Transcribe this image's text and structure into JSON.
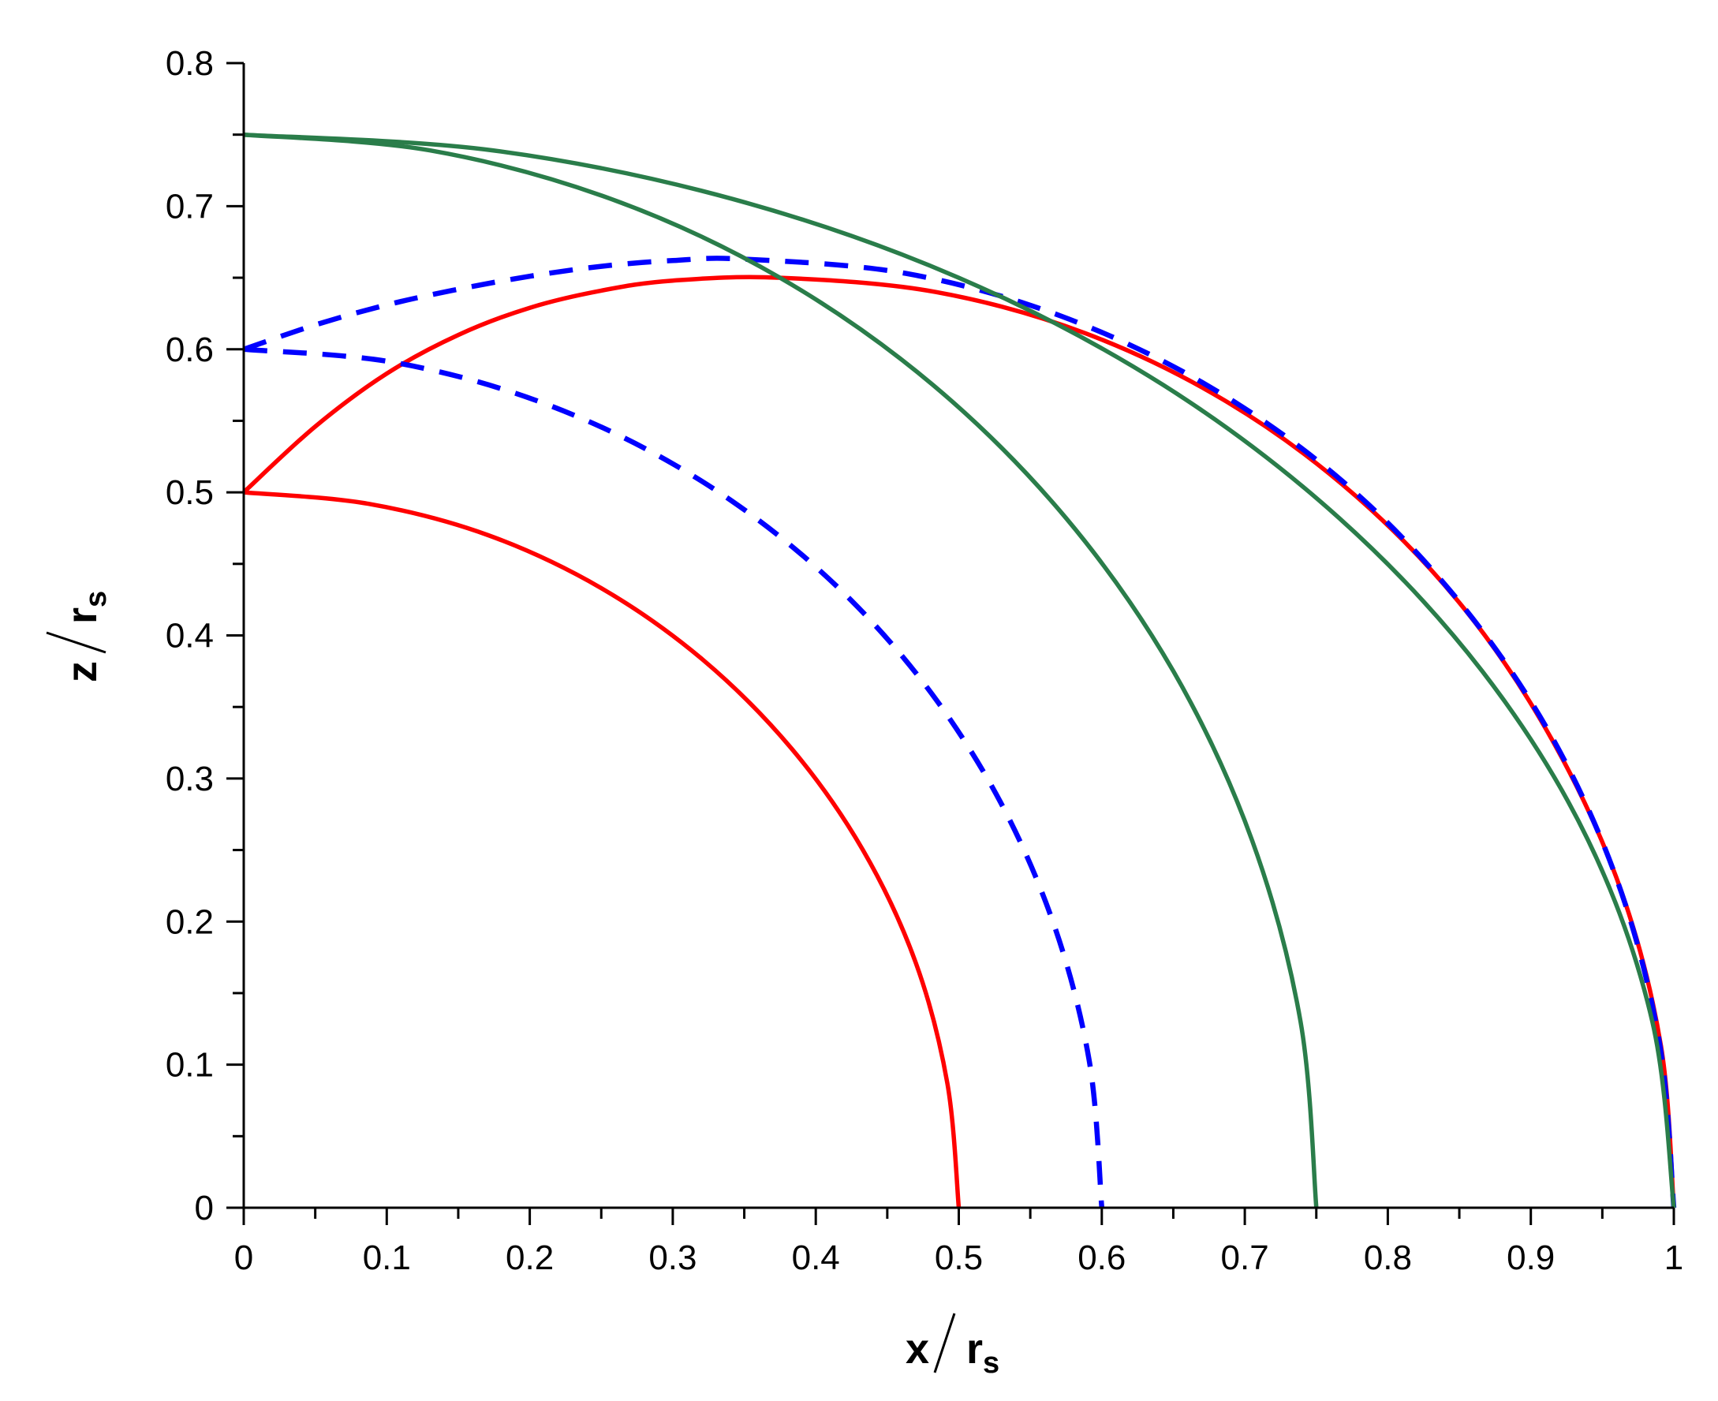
{
  "chart_data": {
    "type": "line",
    "xlabel": {
      "main": "x",
      "denominator": "r",
      "subscript": "s"
    },
    "ylabel": {
      "main": "z",
      "denominator": "r",
      "subscript": "s"
    },
    "xlim": [
      0,
      1
    ],
    "ylim": [
      0,
      0.8
    ],
    "xticks": [
      "0",
      "0.1",
      "0.2",
      "0.3",
      "0.4",
      "0.5",
      "0.6",
      "0.7",
      "0.8",
      "0.9",
      "1"
    ],
    "yticks": [
      "0",
      "0.1",
      "0.2",
      "0.3",
      "0.4",
      "0.5",
      "0.6",
      "0.7",
      "0.8"
    ],
    "grid": false,
    "series": [
      {
        "color": "#ff0000",
        "style": "solid",
        "x": [
          0,
          0.087,
          0.171,
          0.25,
          0.321,
          0.383,
          0.433,
          0.47,
          0.492,
          0.5
        ],
        "y": [
          0.5,
          0.492,
          0.47,
          0.433,
          0.383,
          0.321,
          0.25,
          0.171,
          0.087,
          0
        ]
      },
      {
        "color": "#ff0000",
        "style": "solid",
        "x": [
          0,
          0.05,
          0.1,
          0.15,
          0.2,
          0.25,
          0.3,
          0.375,
          0.484,
          0.589,
          0.688,
          0.777,
          0.854,
          0.916,
          0.963,
          0.991,
          1.0
        ],
        "y": [
          0.5,
          0.546,
          0.583,
          0.61,
          0.629,
          0.641,
          0.648,
          0.65,
          0.64,
          0.611,
          0.563,
          0.498,
          0.418,
          0.325,
          0.222,
          0.113,
          0
        ]
      },
      {
        "color": "#0000ff",
        "style": "dashed",
        "x": [
          0,
          0.104,
          0.205,
          0.3,
          0.386,
          0.46,
          0.52,
          0.564,
          0.591,
          0.6
        ],
        "y": [
          0.6,
          0.591,
          0.564,
          0.52,
          0.46,
          0.386,
          0.3,
          0.205,
          0.104,
          0
        ]
      },
      {
        "color": "#0000ff",
        "style": "dashed",
        "x": [
          0,
          0.05,
          0.1,
          0.15,
          0.2,
          0.25,
          0.3,
          0.35,
          0.463,
          0.572,
          0.675,
          0.768,
          0.848,
          0.913,
          0.961,
          0.99,
          1.0
        ],
        "y": [
          0.6,
          0.617,
          0.631,
          0.642,
          0.651,
          0.658,
          0.662,
          0.663,
          0.653,
          0.623,
          0.574,
          0.508,
          0.426,
          0.332,
          0.227,
          0.115,
          0
        ]
      },
      {
        "color": "#2a7d4a",
        "style": "solid",
        "x": [
          0,
          0.13,
          0.257,
          0.375,
          0.482,
          0.575,
          0.65,
          0.705,
          0.739,
          0.75
        ],
        "y": [
          0.75,
          0.739,
          0.705,
          0.65,
          0.575,
          0.482,
          0.375,
          0.257,
          0.13,
          0
        ]
      },
      {
        "color": "#2a7d4a",
        "style": "solid",
        "x": [
          0,
          0.174,
          0.342,
          0.5,
          0.643,
          0.766,
          0.866,
          0.94,
          0.985,
          1.0
        ],
        "y": [
          0.75,
          0.739,
          0.705,
          0.65,
          0.575,
          0.482,
          0.375,
          0.257,
          0.13,
          0
        ]
      }
    ]
  }
}
